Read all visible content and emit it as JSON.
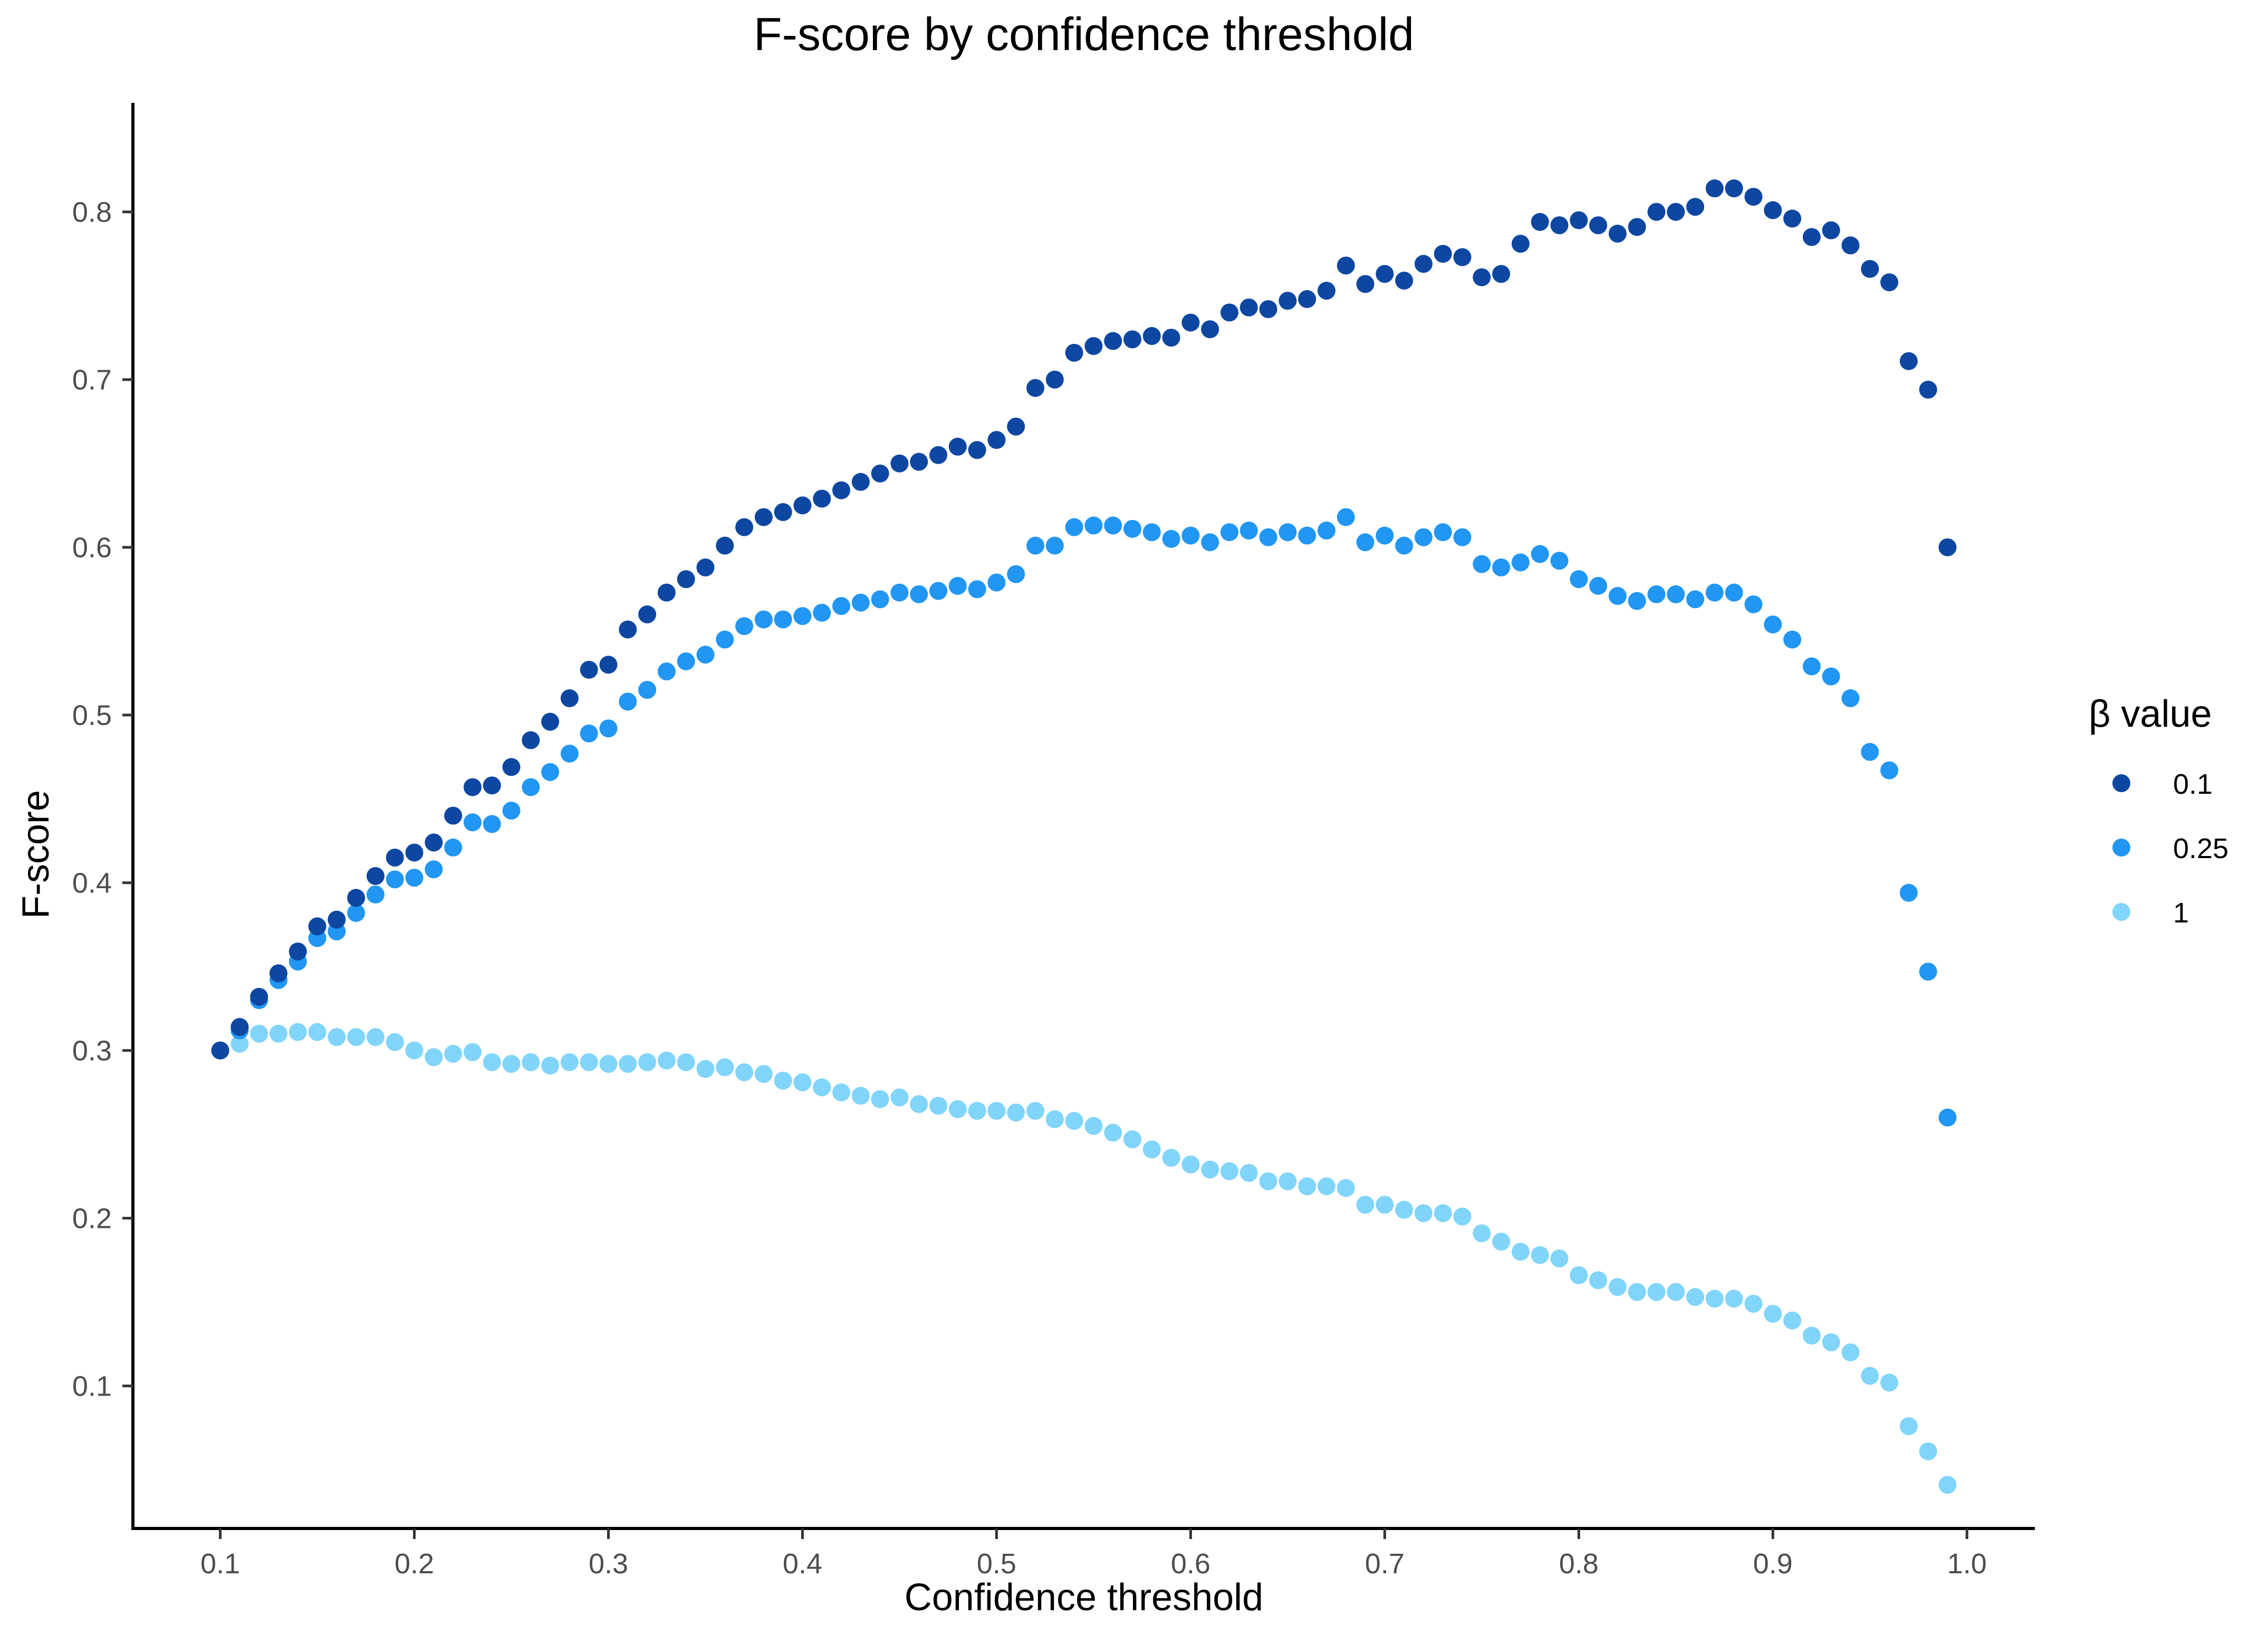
{
  "chart_data": {
    "type": "scatter",
    "title": "F-score by confidence threshold",
    "xlabel": "Confidence threshold",
    "ylabel": "F-score",
    "xlim": [
      0.055,
      1.035
    ],
    "ylim": [
      0.015,
      0.865
    ],
    "x_ticks": [
      "0.1",
      "0.2",
      "0.3",
      "0.4",
      "0.5",
      "0.6",
      "0.7",
      "0.8",
      "0.9",
      "1.0"
    ],
    "y_ticks": [
      "0.1",
      "0.2",
      "0.3",
      "0.4",
      "0.5",
      "0.6",
      "0.7",
      "0.8"
    ],
    "grid": false,
    "legend": {
      "title": "β value",
      "placement": "right"
    },
    "x": [
      0.1,
      0.11,
      0.12,
      0.13,
      0.14,
      0.15,
      0.16,
      0.17,
      0.18,
      0.19,
      0.2,
      0.21,
      0.22,
      0.23,
      0.24,
      0.25,
      0.26,
      0.27,
      0.28,
      0.29,
      0.3,
      0.31,
      0.32,
      0.33,
      0.34,
      0.35,
      0.36,
      0.37,
      0.38,
      0.39,
      0.4,
      0.41,
      0.42,
      0.43,
      0.44,
      0.45,
      0.46,
      0.47,
      0.48,
      0.49,
      0.5,
      0.51,
      0.52,
      0.53,
      0.54,
      0.55,
      0.56,
      0.57,
      0.58,
      0.59,
      0.6,
      0.61,
      0.62,
      0.63,
      0.64,
      0.65,
      0.66,
      0.67,
      0.68,
      0.69,
      0.7,
      0.71,
      0.72,
      0.73,
      0.74,
      0.75,
      0.76,
      0.77,
      0.78,
      0.79,
      0.8,
      0.81,
      0.82,
      0.83,
      0.84,
      0.85,
      0.86,
      0.87,
      0.88,
      0.89,
      0.9,
      0.91,
      0.92,
      0.93,
      0.94,
      0.95,
      0.96,
      0.97,
      0.98,
      0.99
    ],
    "series": [
      {
        "name": "0.1",
        "color": "#0d47a1",
        "values": [
          0.3,
          0.314,
          0.332,
          0.346,
          0.359,
          0.374,
          0.378,
          0.391,
          0.404,
          0.415,
          0.418,
          0.424,
          0.44,
          0.457,
          0.458,
          0.469,
          0.485,
          0.496,
          0.51,
          0.527,
          0.53,
          0.551,
          0.56,
          0.573,
          0.581,
          0.588,
          0.601,
          0.612,
          0.618,
          0.621,
          0.625,
          0.629,
          0.634,
          0.639,
          0.644,
          0.65,
          0.651,
          0.655,
          0.66,
          0.658,
          0.664,
          0.672,
          0.695,
          0.7,
          0.716,
          0.72,
          0.723,
          0.724,
          0.726,
          0.725,
          0.734,
          0.73,
          0.74,
          0.743,
          0.742,
          0.747,
          0.748,
          0.753,
          0.768,
          0.757,
          0.763,
          0.759,
          0.769,
          0.775,
          0.773,
          0.761,
          0.763,
          0.781,
          0.794,
          0.792,
          0.795,
          0.792,
          0.787,
          0.791,
          0.8,
          0.8,
          0.803,
          0.814,
          0.814,
          0.809,
          0.801,
          0.796,
          0.785,
          0.789,
          0.78,
          0.766,
          0.758,
          0.711,
          0.694,
          0.6
        ]
      },
      {
        "name": "0.25",
        "color": "#2196f3",
        "values": [
          0.3,
          0.312,
          0.33,
          0.342,
          0.353,
          0.367,
          0.371,
          0.382,
          0.393,
          0.402,
          0.403,
          0.408,
          0.421,
          0.436,
          0.435,
          0.443,
          0.457,
          0.466,
          0.477,
          0.489,
          0.492,
          0.508,
          0.515,
          0.526,
          0.532,
          0.536,
          0.545,
          0.553,
          0.557,
          0.557,
          0.559,
          0.561,
          0.565,
          0.567,
          0.569,
          0.573,
          0.572,
          0.574,
          0.577,
          0.575,
          0.579,
          0.584,
          0.601,
          0.601,
          0.612,
          0.613,
          0.613,
          0.611,
          0.609,
          0.605,
          0.607,
          0.603,
          0.609,
          0.61,
          0.606,
          0.609,
          0.607,
          0.61,
          0.618,
          0.603,
          0.607,
          0.601,
          0.606,
          0.609,
          0.606,
          0.59,
          0.588,
          0.591,
          0.596,
          0.592,
          0.581,
          0.577,
          0.571,
          0.568,
          0.572,
          0.572,
          0.569,
          0.573,
          0.573,
          0.566,
          0.554,
          0.545,
          0.529,
          0.523,
          0.51,
          0.478,
          0.467,
          0.394,
          0.347,
          0.26
        ]
      },
      {
        "name": "1",
        "color": "#81d4fa",
        "values": [
          0.3,
          0.304,
          0.31,
          0.31,
          0.311,
          0.311,
          0.308,
          0.308,
          0.308,
          0.305,
          0.3,
          0.296,
          0.298,
          0.299,
          0.293,
          0.292,
          0.293,
          0.291,
          0.293,
          0.293,
          0.292,
          0.292,
          0.293,
          0.294,
          0.293,
          0.289,
          0.29,
          0.287,
          0.286,
          0.282,
          0.281,
          0.278,
          0.275,
          0.273,
          0.271,
          0.272,
          0.268,
          0.267,
          0.265,
          0.264,
          0.264,
          0.263,
          0.264,
          0.259,
          0.258,
          0.255,
          0.251,
          0.247,
          0.241,
          0.236,
          0.232,
          0.229,
          0.228,
          0.227,
          0.222,
          0.222,
          0.219,
          0.219,
          0.218,
          0.208,
          0.208,
          0.205,
          0.203,
          0.203,
          0.201,
          0.191,
          0.186,
          0.18,
          0.178,
          0.176,
          0.166,
          0.163,
          0.159,
          0.156,
          0.156,
          0.156,
          0.153,
          0.152,
          0.152,
          0.149,
          0.143,
          0.139,
          0.13,
          0.126,
          0.12,
          0.106,
          0.102,
          0.076,
          0.061,
          0.041
        ]
      }
    ]
  }
}
